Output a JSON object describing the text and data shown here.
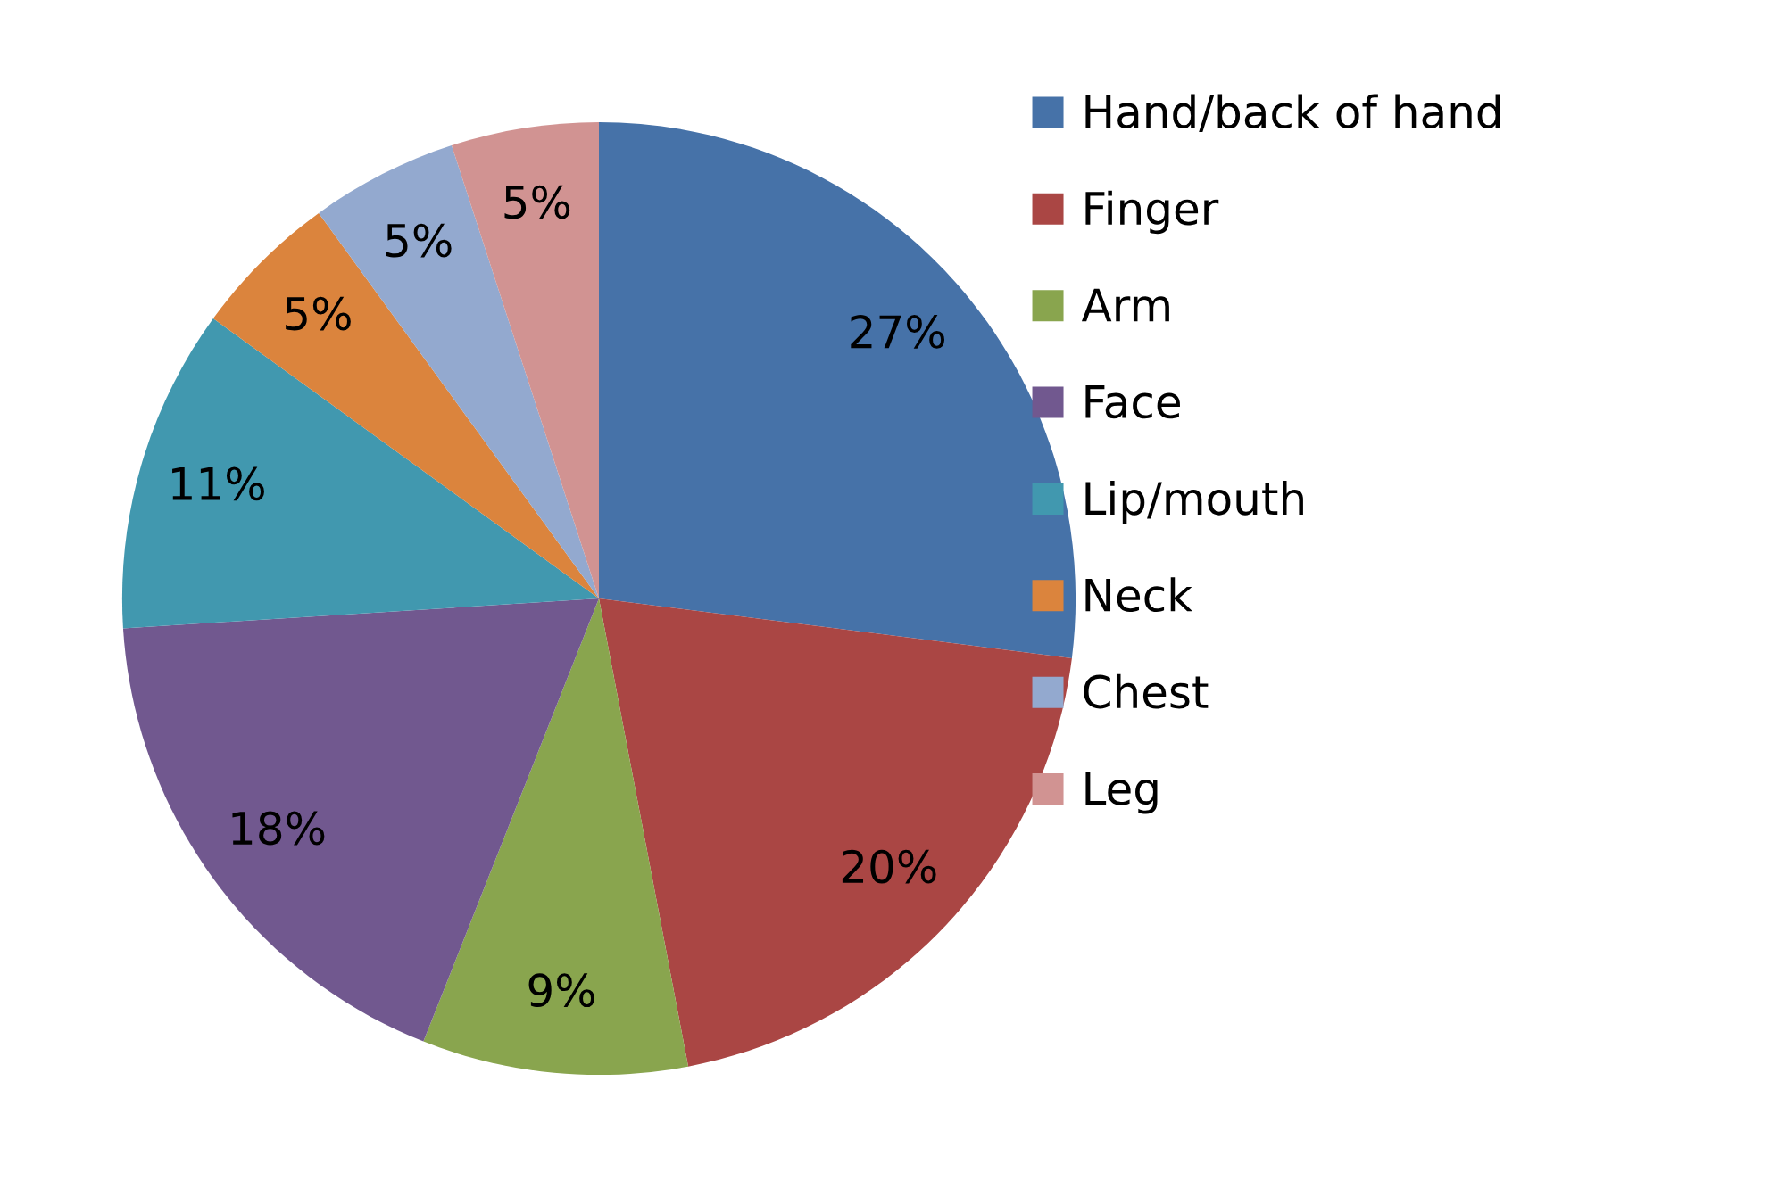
{
  "chart_data": {
    "type": "pie",
    "categories": [
      "Hand/back of hand",
      "Finger",
      "Arm",
      "Face",
      "Lip/mouth",
      "Neck",
      "Chest",
      "Leg"
    ],
    "values": [
      27,
      20,
      9,
      18,
      11,
      5,
      5,
      5
    ],
    "colors": [
      "#4672a8",
      "#aa4644",
      "#89a54e",
      "#71588f",
      "#4198af",
      "#db843d",
      "#93a9cf",
      "#d19392"
    ],
    "value_labels": [
      "27%",
      "20%",
      "9%",
      "18%",
      "11%",
      "5%",
      "5%",
      "5%"
    ],
    "legend": "right"
  }
}
